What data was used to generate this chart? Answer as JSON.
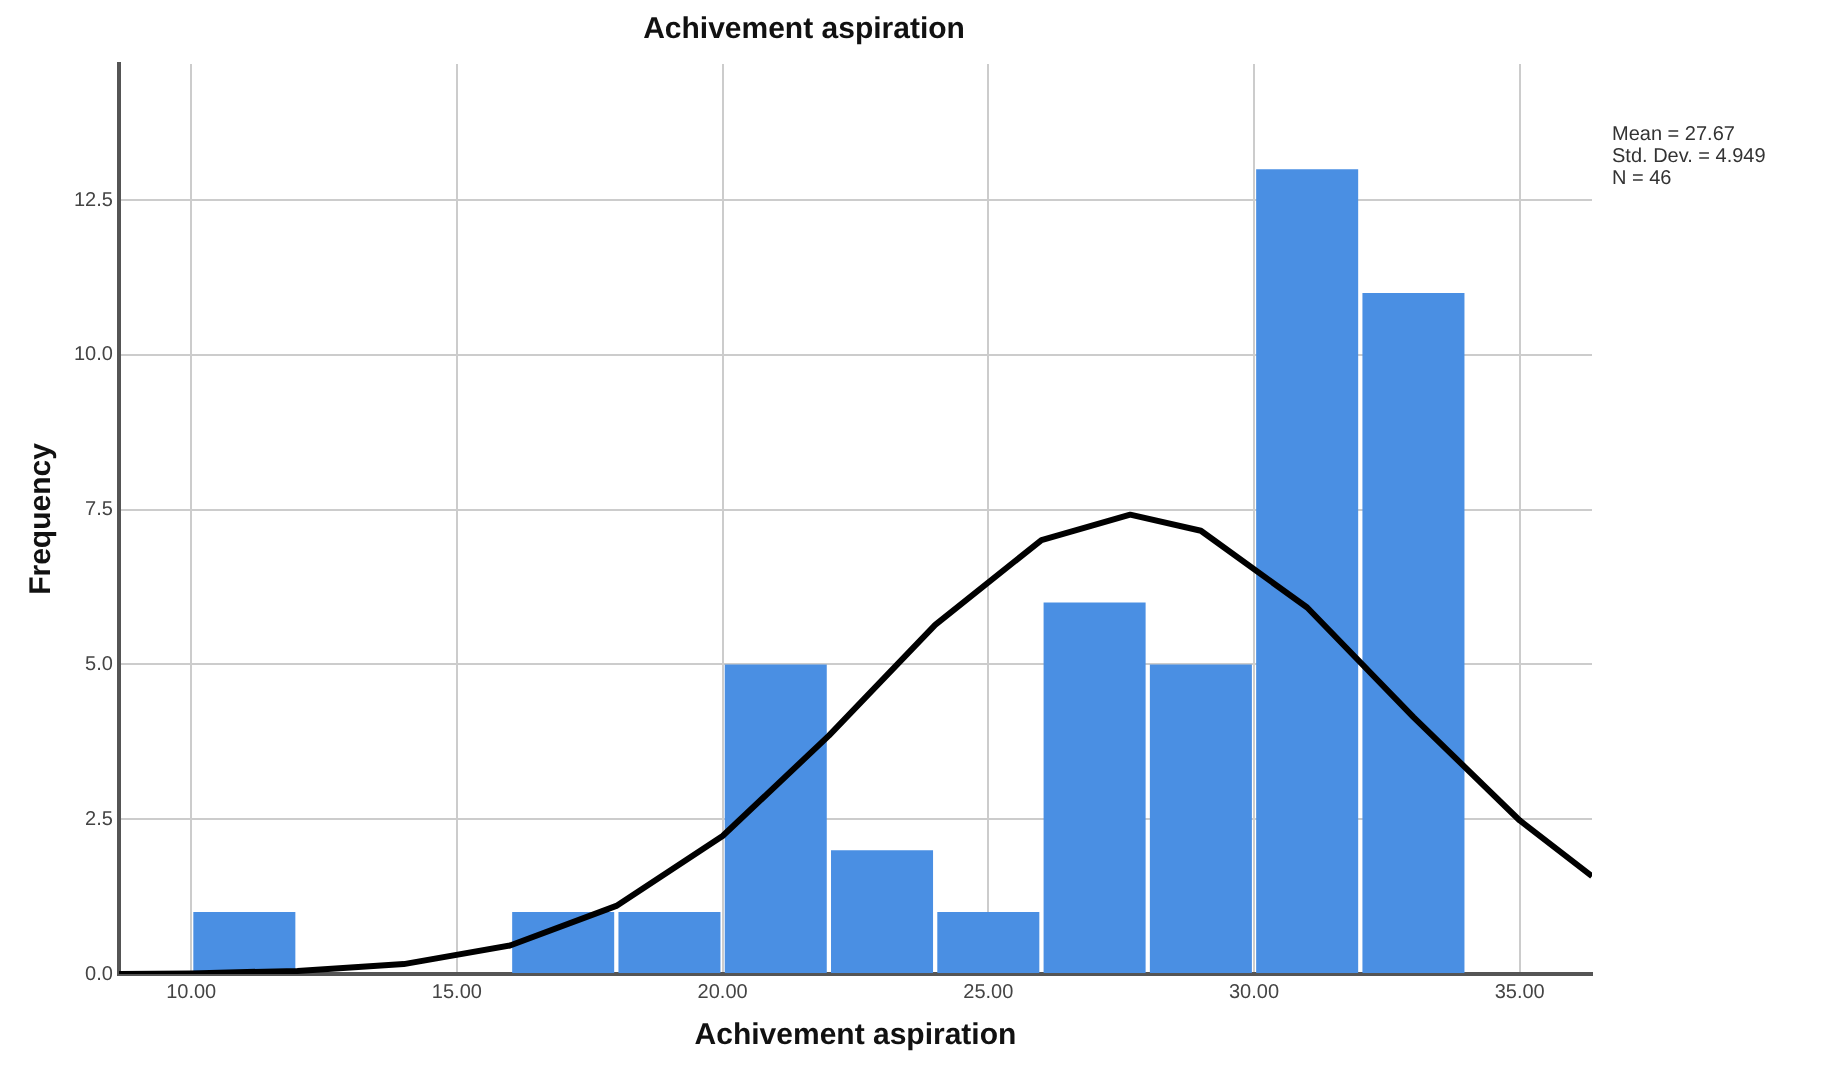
{
  "chart_data": {
    "type": "histogram",
    "title": "Achivement aspiration",
    "xlabel": "Achivement aspiration",
    "ylabel": "Frequency",
    "bins": [
      10,
      12,
      14,
      16,
      18,
      20,
      22,
      24,
      26,
      28,
      30,
      32,
      34
    ],
    "values": [
      1,
      0,
      0,
      1,
      1,
      5,
      2,
      1,
      6,
      5,
      13,
      11
    ],
    "color": "#4a8fe3",
    "series": [
      {
        "type": "line",
        "color": "#000000",
        "marker": "none",
        "line_style": "solid",
        "x": [
          8.64,
          10,
          12,
          14,
          16,
          18,
          20,
          22,
          24,
          26,
          27.67,
          29,
          31,
          33,
          35,
          36.36
        ],
        "values": [
          0.0,
          0.01,
          0.05,
          0.16,
          0.46,
          1.1,
          2.23,
          3.85,
          5.64,
          7.01,
          7.42,
          7.16,
          5.92,
          4.15,
          2.48,
          1.58
        ]
      }
    ],
    "xlim": [
      8.64,
      36.36
    ],
    "xticks": [
      {
        "value": 10,
        "label": "10.00"
      },
      {
        "value": 15,
        "label": "15.00"
      },
      {
        "value": 20,
        "label": "20.00"
      },
      {
        "value": 25,
        "label": "25.00"
      },
      {
        "value": 30,
        "label": "30.00"
      },
      {
        "value": 35,
        "label": "35.00"
      }
    ],
    "ylim": [
      0,
      14.7
    ],
    "yticks": [
      {
        "value": 0,
        "label": "0.0"
      },
      {
        "value": 2.5,
        "label": "2.5"
      },
      {
        "value": 5,
        "label": "5.0"
      },
      {
        "value": 7.5,
        "label": "7.5"
      },
      {
        "value": 10,
        "label": "10.0"
      },
      {
        "value": 12.5,
        "label": "12.5"
      }
    ],
    "grid": true,
    "legend": false,
    "annotations": [
      "Mean = 27.67",
      "Std. Dev. = 4.949",
      "N = 46"
    ]
  }
}
